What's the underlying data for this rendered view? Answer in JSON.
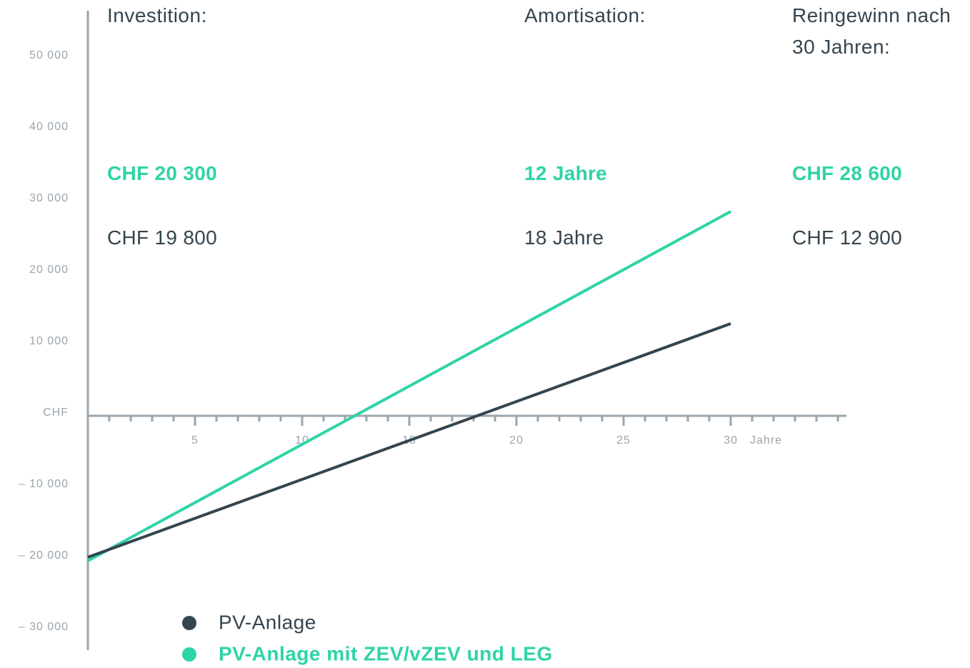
{
  "chart_data": {
    "type": "line",
    "x_label": "Jahre",
    "x": [
      0,
      30
    ],
    "series": [
      {
        "name": "PV-Anlage",
        "color": "#34454f",
        "values": [
          -19800,
          12900
        ]
      },
      {
        "name": "PV-Anlage mit ZEV/vZEV und LEG",
        "color": "#2ed3a6",
        "values": [
          -20300,
          28600
        ]
      }
    ],
    "xlim": [
      0,
      35.4
    ],
    "xticks": [
      5,
      10,
      15,
      20,
      25,
      30
    ],
    "xminorticks": [
      1,
      2,
      3,
      4,
      5,
      6,
      7,
      8,
      9,
      10,
      11,
      12,
      13,
      14,
      15,
      16,
      17,
      18,
      19,
      20,
      21,
      22,
      23,
      24,
      25,
      26,
      27,
      28,
      29,
      30,
      31,
      32,
      33,
      34,
      35
    ],
    "ylim": [
      -32800,
      56700
    ],
    "yticks": [
      {
        "value": 50000,
        "label": "50 000"
      },
      {
        "value": 40000,
        "label": "40 000"
      },
      {
        "value": 30000,
        "label": "30 000"
      },
      {
        "value": 20000,
        "label": "20 000"
      },
      {
        "value": 10000,
        "label": "10 000"
      },
      {
        "value": 0,
        "label": "CHF"
      },
      {
        "value": -10000,
        "label": "– 10 000"
      },
      {
        "value": -20000,
        "label": "– 20 000"
      },
      {
        "value": -30000,
        "label": "– 30 000"
      }
    ],
    "summary": {
      "headers": [
        "Investition:",
        "Amortisation:",
        "Reingewinn nach 30 Jahren:"
      ],
      "rows": [
        [
          "CHF 20 300",
          "12 Jahre",
          "CHF 28 600"
        ],
        [
          "CHF 19 800",
          "18 Jahre",
          "CHF 12 900"
        ]
      ]
    }
  }
}
